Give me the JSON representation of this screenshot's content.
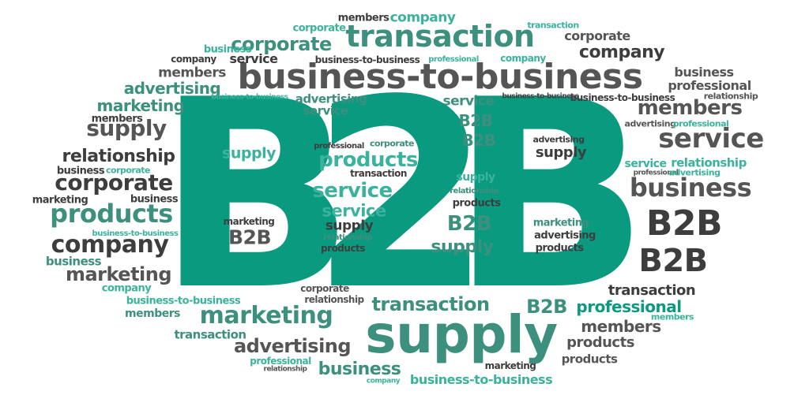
{
  "palette": {
    "teal": "#0a9a80",
    "lightTeal": "#3bb39c",
    "darkGray": "#3d3d3d",
    "midGray": "#555555",
    "background": "#ffffff"
  },
  "words": {
    "main_b1": "B",
    "main_two": "2",
    "main_b2": "B",
    "transaction_top": "transaction",
    "b2b_hyphen_big": "business-to-business",
    "supply_big": "supply",
    "b2b_right_1": "B2B",
    "b2b_right_2": "B2B",
    "service_right": "service",
    "business_right": "business",
    "members_right": "members",
    "company_right": "company",
    "corporate_top": "corporate",
    "corporate_left": "corporate",
    "products_left": "products",
    "company_left": "company",
    "marketing_left": "marketing",
    "supply_left": "supply",
    "relationship_left": "relationship",
    "marketing_bottom": "marketing",
    "transaction_bottom": "transaction",
    "b2b_bottom": "B2B",
    "professional_bottom": "professional",
    "advertising_bottom": "advertising",
    "business_bottom": "business",
    "b2b_sub_bottom": "business-to-business",
    "members_br": "members",
    "products_br": "products",
    "transaction_br": "transaction",
    "members_top": "members",
    "company_top": "company",
    "transaction_tiny_top": "transaction",
    "corporate_right": "corporate",
    "business_small_top": "business",
    "company_small_top": "company",
    "service_top": "service",
    "b2b_small_top": "business-to-business",
    "professional_top": "professional",
    "company_teal_top": "company",
    "members_left": "members",
    "advertising_left": "advertising",
    "marketing_left_small": "marketing",
    "b2b_tiny_left": "business-to-business",
    "members_left2": "members",
    "business_left_small": "business",
    "corporate_teal_tiny": "corporate",
    "business_left2": "business",
    "marketing_tiny_left": "marketing",
    "b2b_tiny_left2": "business-to-business",
    "business_left3": "business",
    "company_teal_left": "company",
    "b2b_small_left": "business-to-business",
    "members_small_left": "members",
    "transaction_small_left": "transaction",
    "professional_small_bottom": "professional",
    "relationship_tiny_bottom": "relationship",
    "company_tiny_bottom": "company",
    "marketing_small_bottom": "marketing",
    "products_small_bottom": "products",
    "members_tiny_bottom": "members",
    "corporate_small_center": "corporate",
    "relationship_small_center": "relationship",
    "b2b_tiny_top_center": "business-to-business",
    "advertising_center_top": "advertising",
    "service_center_top": "service",
    "business_small_right": "business",
    "professional_right": "professional",
    "relationship_tiny_right": "relationship",
    "b2b_small_right": "business-to-business",
    "advertising_tiny_right": "advertising",
    "professional_tiny_right": "professional",
    "service_small_right": "service",
    "professional_tiny_right2": "professional",
    "relationship_right": "relationship",
    "advertising_tiny_right2": "advertising",
    "service_center_b": "service",
    "b2b_center_1": "B2B",
    "b2b_center_2": "B2B",
    "supply_center_1": "supply",
    "professional_center": "professional",
    "corporate_center": "corporate",
    "products_center": "products",
    "transaction_center": "transaction",
    "service_center_big": "service",
    "service_center2": "service",
    "supply_center2": "supply",
    "relationship_center": "relationship",
    "relationship_center2": "relationship",
    "supply_center3": "supply",
    "products_center2": "products",
    "b2b_center_3": "B2B",
    "supply_center4": "supply",
    "marketing_center": "marketing",
    "b2b_center_4": "B2B",
    "advertising_center": "advertising",
    "supply_center5": "supply",
    "marketing_center2": "marketing",
    "advertising_center2": "advertising",
    "products_center3": "products"
  }
}
